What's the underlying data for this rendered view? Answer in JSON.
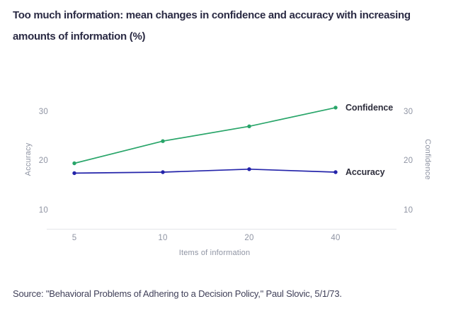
{
  "title": {
    "line1": "Too much information: mean changes in confidence and accuracy with increasing",
    "line2": "amounts of information (%)"
  },
  "source_note": "Source: \"Behavioral Problems of Adhering to a Decision Policy,\" Paul Slovic, 5/1/73.",
  "chart_data": {
    "type": "line",
    "title": "Too much information: mean changes in confidence and accuracy with increasing amounts of information (%)",
    "x": [
      5,
      10,
      20,
      40
    ],
    "x_axis_label": "Items of information",
    "x_scale": "log2 (equal spacing per doubling of items)",
    "y_ticks": [
      10,
      20,
      30
    ],
    "ylim": [
      6,
      33
    ],
    "left_axis_label": "Accuracy",
    "right_axis_label": "Confidence",
    "grid": "off",
    "legend_position": "inline labels at right end of each line",
    "series": [
      {
        "name": "Confidence",
        "color": "#28a569",
        "values": [
          19.5,
          24.0,
          27.0,
          30.8
        ]
      },
      {
        "name": "Accuracy",
        "color": "#2424aa",
        "values": [
          17.5,
          17.7,
          18.3,
          17.7
        ]
      }
    ],
    "colors": {
      "axis_line": "#e5e6ea",
      "tick_text": "#8f94a3",
      "title_text": "#2b2b44"
    }
  }
}
